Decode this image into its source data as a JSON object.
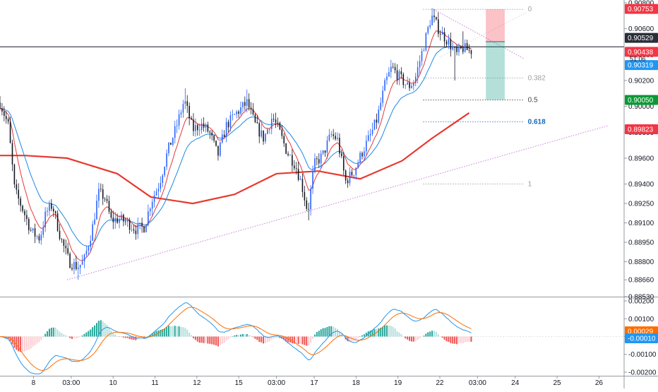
{
  "chart_data": [
    {
      "type": "candlestick",
      "panel": "price",
      "ylim": [
        0.8853,
        0.908
      ],
      "y_ticks": [
        "0.90800",
        "0.90600",
        "0.90400",
        "0.90200",
        "0.90000",
        "0.89800",
        "0.89600",
        "0.89400",
        "0.89250",
        "0.89100",
        "0.88950",
        "0.88800",
        "0.88660",
        "0.88530"
      ],
      "x_ticks": [
        {
          "label": "8",
          "t": 0.8
        },
        {
          "label": "03:00",
          "t": 1.7
        },
        {
          "label": "10",
          "t": 2.7
        },
        {
          "label": "11",
          "t": 3.7
        },
        {
          "label": "12",
          "t": 4.7
        },
        {
          "label": "15",
          "t": 5.7
        },
        {
          "label": "03:00",
          "t": 6.6
        },
        {
          "label": "17",
          "t": 7.5
        },
        {
          "label": "18",
          "t": 8.5
        },
        {
          "label": "19",
          "t": 9.5
        },
        {
          "label": "22",
          "t": 10.5
        },
        {
          "label": "03:00",
          "t": 11.4
        },
        {
          "label": "24",
          "t": 12.3
        },
        {
          "label": "25",
          "t": 13.3
        },
        {
          "label": "26",
          "t": 14.3
        }
      ],
      "price_path": [
        [
          0.0,
          0.9003
        ],
        [
          0.2,
          0.8985
        ],
        [
          0.35,
          0.8935
        ],
        [
          0.55,
          0.892
        ],
        [
          0.75,
          0.8903
        ],
        [
          0.95,
          0.8898
        ],
        [
          1.1,
          0.8918
        ],
        [
          1.25,
          0.8924
        ],
        [
          1.45,
          0.8898
        ],
        [
          1.65,
          0.888
        ],
        [
          1.85,
          0.8876
        ],
        [
          2.0,
          0.888
        ],
        [
          2.2,
          0.8905
        ],
        [
          2.35,
          0.8933
        ],
        [
          2.5,
          0.893
        ],
        [
          2.65,
          0.8912
        ],
        [
          2.85,
          0.8913
        ],
        [
          3.05,
          0.891
        ],
        [
          3.25,
          0.8905
        ],
        [
          3.45,
          0.8907
        ],
        [
          3.6,
          0.8926
        ],
        [
          3.8,
          0.894
        ],
        [
          4.0,
          0.8965
        ],
        [
          4.2,
          0.8983
        ],
        [
          4.4,
          0.9005
        ],
        [
          4.6,
          0.8982
        ],
        [
          4.8,
          0.8986
        ],
        [
          5.0,
          0.898
        ],
        [
          5.2,
          0.8962
        ],
        [
          5.4,
          0.8985
        ],
        [
          5.65,
          0.8995
        ],
        [
          5.9,
          0.9003
        ],
        [
          6.1,
          0.8985
        ],
        [
          6.3,
          0.8975
        ],
        [
          6.5,
          0.8992
        ],
        [
          6.65,
          0.8982
        ],
        [
          6.85,
          0.8965
        ],
        [
          7.05,
          0.8955
        ],
        [
          7.2,
          0.894
        ],
        [
          7.35,
          0.8918
        ],
        [
          7.5,
          0.8955
        ],
        [
          7.7,
          0.8962
        ],
        [
          7.9,
          0.8978
        ],
        [
          8.05,
          0.8975
        ],
        [
          8.25,
          0.8942
        ],
        [
          8.45,
          0.895
        ],
        [
          8.65,
          0.8965
        ],
        [
          8.85,
          0.8978
        ],
        [
          9.0,
          0.899
        ],
        [
          9.2,
          0.9018
        ],
        [
          9.35,
          0.903
        ],
        [
          9.55,
          0.9022
        ],
        [
          9.75,
          0.9015
        ],
        [
          9.9,
          0.902
        ],
        [
          10.1,
          0.9045
        ],
        [
          10.3,
          0.907
        ],
        [
          10.5,
          0.9058
        ],
        [
          10.7,
          0.905
        ],
        [
          10.9,
          0.904
        ],
        [
          11.05,
          0.9045
        ],
        [
          11.2,
          0.9043
        ]
      ],
      "series": [
        {
          "name": "",
          "color": "#e53935",
          "kind": "ema_fast"
        },
        {
          "name": "",
          "color": "#1e88e5",
          "kind": "ema_slow"
        },
        {
          "name": "",
          "color": "#e8382e",
          "kind": "ema_long",
          "values": [
            [
              0.0,
              0.8962
            ],
            [
              0.6,
              0.8962
            ],
            [
              1.6,
              0.896
            ],
            [
              2.8,
              0.8948
            ],
            [
              3.6,
              0.893
            ],
            [
              4.6,
              0.8925
            ],
            [
              5.6,
              0.8932
            ],
            [
              6.6,
              0.8948
            ],
            [
              7.6,
              0.895
            ],
            [
              8.6,
              0.8944
            ],
            [
              9.6,
              0.8958
            ],
            [
              10.3,
              0.8975
            ],
            [
              11.2,
              0.8995
            ]
          ]
        }
      ],
      "fib": {
        "levels": [
          {
            "label": "0",
            "price": 0.9075,
            "color": "#9e9e9e"
          },
          {
            "label": "0.382",
            "price": 0.9022,
            "color": "#9e9e9e"
          },
          {
            "label": "0.5",
            "price": 0.9005,
            "color": "#444444"
          },
          {
            "label": "0.618",
            "price": 0.8988,
            "color": "#1565c0"
          },
          {
            "label": "1",
            "price": 0.894,
            "color": "#9e9e9e"
          }
        ]
      },
      "horizontal_line": 0.9046,
      "trendlines": [
        {
          "from": [
            1.6,
            0.8866
          ],
          "to": [
            14.5,
            0.8985
          ],
          "color": "#c77dd8"
        },
        {
          "from": [
            10.35,
            0.9075
          ],
          "to": [
            12.5,
            0.9037
          ],
          "color": "#c77dd8"
        }
      ],
      "position_tool": {
        "entry": 0.905,
        "stop": 0.9075,
        "target": 0.9005
      },
      "price_labels": [
        {
          "text": "0.90753",
          "bg": "#f23645",
          "price": 0.90753
        },
        {
          "text": "0.90529",
          "bg": "#2a2e39",
          "price": 0.90529
        },
        {
          "text": "0.90438",
          "bg": "#f23645",
          "price": 0.90438
        },
        {
          "text": "0.90319",
          "bg": "#2196f3",
          "price": 0.90319
        },
        {
          "text": "0.90050",
          "bg": "#0a9a34",
          "price": 0.9005
        },
        {
          "text": "0.89823",
          "bg": "#f23645",
          "price": 0.89823
        }
      ],
      "label_fragment": "51:06"
    },
    {
      "type": "macd",
      "panel": "indicator",
      "ylim": [
        -0.0022,
        0.0022
      ],
      "y_ticks": [
        "0.00200",
        "0.00100",
        "0.00000",
        "-0.00100",
        "-0.00200"
      ],
      "price_labels": [
        {
          "text": "0.00029",
          "bg": "#ff6d00",
          "value": 0.00029
        },
        {
          "text": "-0.00010",
          "bg": "#2196f3",
          "value": -0.0001
        }
      ],
      "series": [
        {
          "name": "",
          "color": "#2196f3",
          "kind": "macd"
        },
        {
          "name": "",
          "color": "#ff6d00",
          "kind": "signal"
        }
      ]
    }
  ]
}
